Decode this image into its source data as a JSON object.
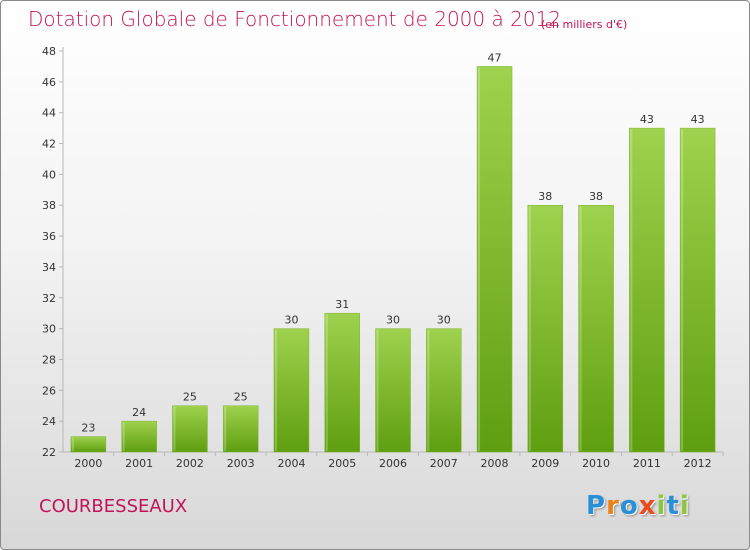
{
  "header": {
    "title": "Dotation Globale de Fonctionnement de 2000 à 2012",
    "unit": "(en milliers d'€)"
  },
  "footer": {
    "commune": "COURBESSEAUX",
    "logo_letters": [
      "P",
      "r",
      "o",
      "x",
      "i",
      "t",
      "i"
    ]
  },
  "colors": {
    "title": "#c0145a",
    "bar_top": "#9fd24e",
    "bar_bottom": "#5f9e10",
    "logo": [
      "#2a8fd6",
      "#e8811a",
      "#2a8fd6",
      "#e84c1a",
      "#8cc63e",
      "#2a8fd6",
      "#8cc63e"
    ]
  },
  "chart_data": {
    "type": "bar",
    "title": "Dotation Globale de Fonctionnement de 2000 à 2012",
    "subtitle": "(en milliers d'€)",
    "categories": [
      "2000",
      "2001",
      "2002",
      "2003",
      "2004",
      "2005",
      "2006",
      "2007",
      "2008",
      "2009",
      "2010",
      "2011",
      "2012"
    ],
    "values": [
      23,
      24,
      25,
      25,
      30,
      31,
      30,
      30,
      47,
      38,
      38,
      43,
      43
    ],
    "ylim": [
      22,
      48
    ],
    "yticks": [
      22,
      24,
      26,
      28,
      30,
      32,
      34,
      36,
      38,
      40,
      42,
      44,
      46,
      48
    ],
    "grid": false,
    "legend": "none"
  }
}
